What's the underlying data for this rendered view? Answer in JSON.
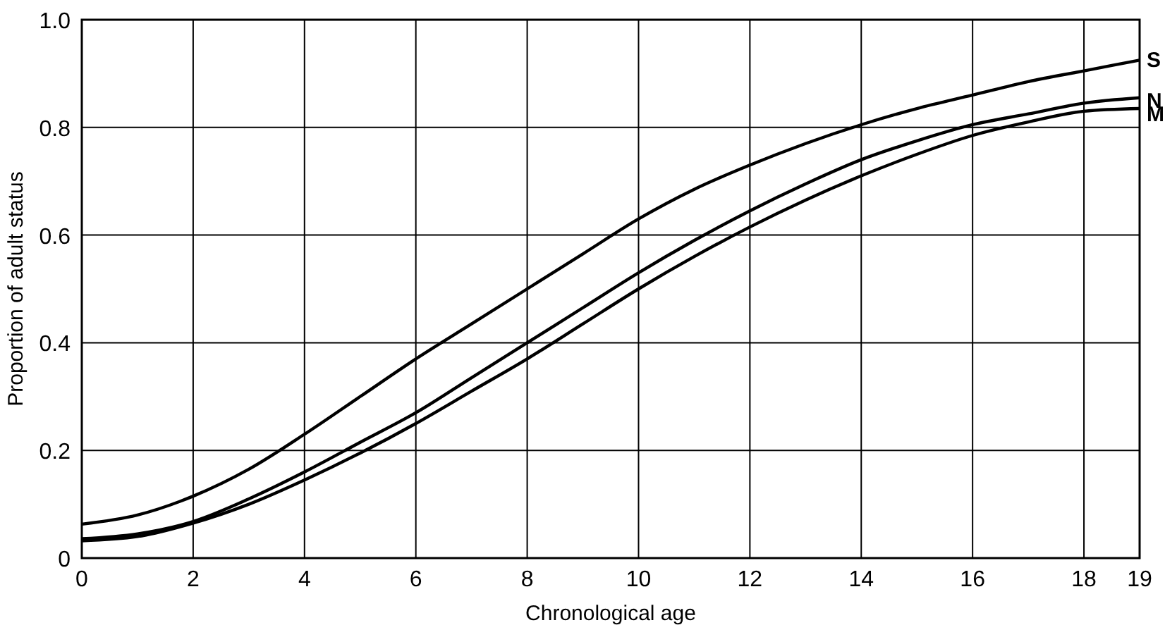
{
  "chart_data": {
    "type": "line",
    "xlabel": "Chronological age",
    "ylabel": "Proportion of adult status",
    "x": [
      0,
      1,
      2,
      3,
      4,
      5,
      6,
      7,
      8,
      9,
      10,
      11,
      12,
      13,
      14,
      15,
      16,
      17,
      18,
      19
    ],
    "series": [
      {
        "name": "S",
        "color": "#000000",
        "values": [
          0.063,
          0.08,
          0.115,
          0.165,
          0.23,
          0.3,
          0.37,
          0.435,
          0.5,
          0.565,
          0.63,
          0.685,
          0.73,
          0.77,
          0.805,
          0.835,
          0.86,
          0.885,
          0.905,
          0.925
        ]
      },
      {
        "name": "N",
        "color": "#000000",
        "values": [
          0.036,
          0.045,
          0.068,
          0.11,
          0.16,
          0.215,
          0.27,
          0.335,
          0.4,
          0.465,
          0.53,
          0.59,
          0.645,
          0.695,
          0.74,
          0.775,
          0.805,
          0.825,
          0.845,
          0.855
        ]
      },
      {
        "name": "M",
        "color": "#000000",
        "values": [
          0.032,
          0.04,
          0.065,
          0.1,
          0.145,
          0.195,
          0.25,
          0.31,
          0.37,
          0.435,
          0.5,
          0.56,
          0.615,
          0.665,
          0.71,
          0.75,
          0.785,
          0.81,
          0.83,
          0.835
        ]
      }
    ],
    "xlim": [
      0,
      19
    ],
    "xticks": [
      0,
      2,
      4,
      6,
      8,
      10,
      12,
      14,
      16,
      18,
      19
    ],
    "ylim": [
      0,
      1
    ],
    "yticks": [
      {
        "value": 0,
        "label": "0"
      },
      0.2,
      0.4,
      0.6,
      0.8,
      {
        "value": 1,
        "label": "1.0"
      }
    ],
    "grid": true,
    "marker": "none",
    "line_style": "solid"
  }
}
